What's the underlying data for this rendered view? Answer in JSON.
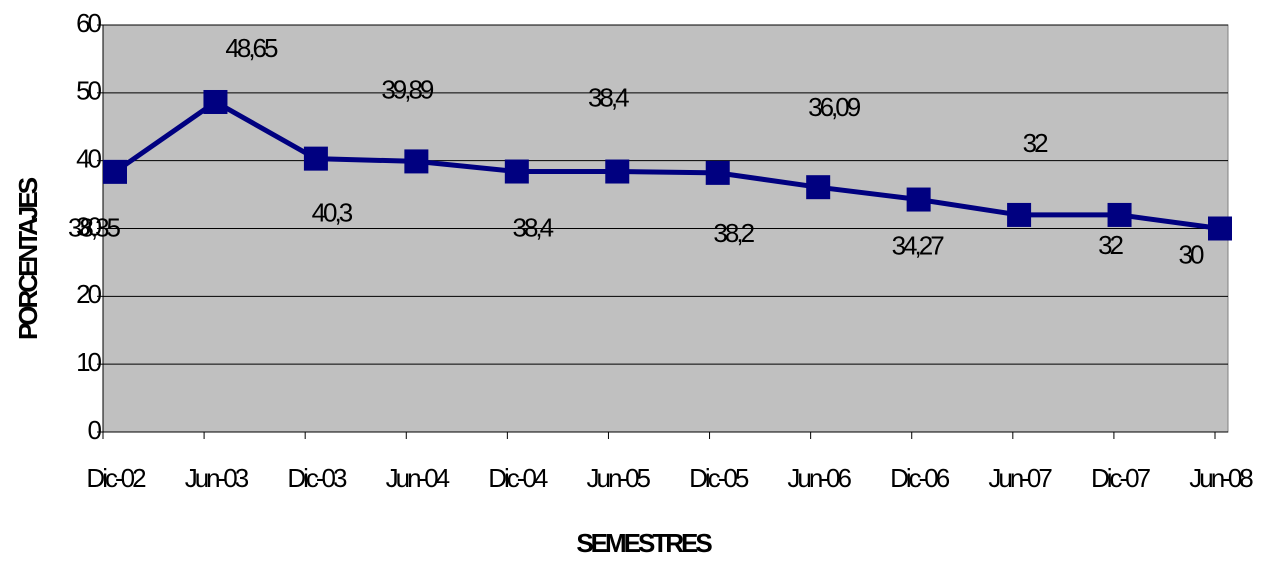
{
  "chart_data": {
    "type": "line",
    "x_label": "SEMESTRES",
    "y_label": "PORCENTAJES",
    "categories": [
      "Dic-02",
      "Jun-03",
      "Dic-03",
      "Jun-04",
      "Dic-04",
      "Jun-05",
      "Dic-05",
      "Jun-06",
      "Dic-06",
      "Jun-07",
      "Dic-07",
      "Jun-08"
    ],
    "series": [
      {
        "name": "Porcentaje",
        "color": "#000080",
        "values": [
          38.35,
          48.65,
          40.3,
          39.89,
          38.4,
          38.4,
          38.2,
          36.09,
          34.27,
          32,
          32,
          30
        ],
        "value_labels": [
          "38,35",
          "48,65",
          "40,3",
          "39,89",
          "38,4",
          "38,4",
          "38,2",
          "36,09",
          "34,27",
          "32",
          "32",
          "30"
        ]
      }
    ],
    "ylim": [
      0,
      60
    ],
    "yticks": [
      0,
      10,
      20,
      30,
      40,
      50,
      60
    ],
    "grid": true
  }
}
